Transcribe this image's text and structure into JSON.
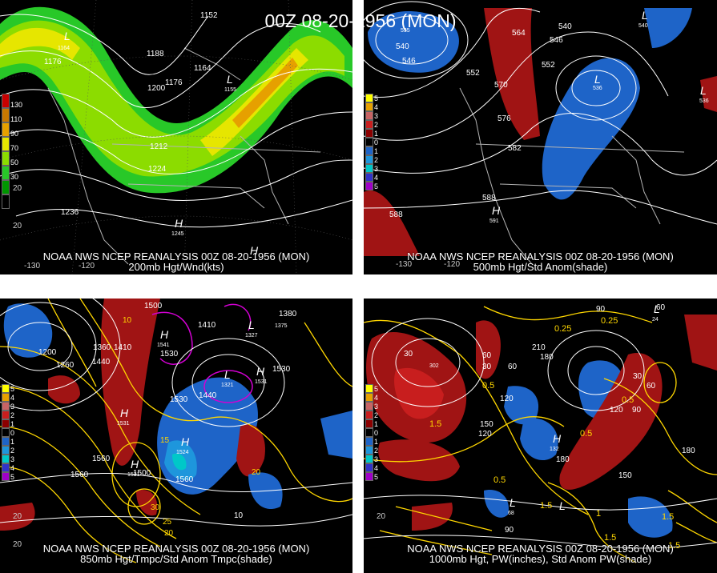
{
  "title": "00Z 08-20-1956 (MON)",
  "panels": [
    {
      "id": "p200",
      "caption_line1": "NOAA NWS NCEP REANALYSIS 00Z 08-20-1956 (MON)",
      "caption_line2": "200mb Hgt/Wnd(kts)",
      "colorbar": [
        "130",
        "110",
        "90",
        "70",
        "50",
        "30"
      ],
      "colorbar_colors": [
        "#c80000",
        "#c87800",
        "#e6a000",
        "#e6e600",
        "#8cdc00",
        "#28c828",
        "#009600",
        "#000000"
      ],
      "contour_labels": [
        "1152",
        "1176",
        "1188",
        "1164",
        "1176",
        "1200",
        "1212",
        "1224",
        "1236"
      ],
      "centers": [
        {
          "letter": "L",
          "value": "1164"
        },
        {
          "letter": "L",
          "value": "1155"
        },
        {
          "letter": "H",
          "value": "1245"
        },
        {
          "letter": "H",
          "value": ""
        }
      ],
      "lon_labels": [
        "-130",
        "-120",
        "20",
        "20"
      ]
    },
    {
      "id": "p500",
      "caption_line1": "NOAA NWS NCEP REANALYSIS 00Z 08-20-1956 (MON)",
      "caption_line2": "500mb Hgt/Std Anom(shade)",
      "colorbar": [
        "5",
        "4",
        "3",
        "2",
        "1",
        "0",
        "1",
        "2",
        "3",
        "4",
        "5"
      ],
      "colorbar_colors": [
        "#ffff00",
        "#e6a000",
        "#c86464",
        "#c81e1e",
        "#8c0000",
        "#000000",
        "#1e64c8",
        "#1e96dc",
        "#00c8c8",
        "#3232c8",
        "#a000c8"
      ],
      "contour_labels": [
        "564",
        "546",
        "540",
        "540",
        "546",
        "552",
        "570",
        "552",
        "576",
        "582",
        "588",
        "588"
      ],
      "centers": [
        {
          "letter": "L",
          "value": "535"
        },
        {
          "letter": "L",
          "value": "536"
        },
        {
          "letter": "L",
          "value": "540"
        },
        {
          "letter": "L",
          "value": "536"
        },
        {
          "letter": "H",
          "value": "591"
        }
      ],
      "lon_labels": [
        "-130",
        "-120"
      ]
    },
    {
      "id": "p850",
      "caption_line1": "NOAA NWS NCEP REANALYSIS 00Z 08-20-1956 (MON)",
      "caption_line2": "850mb Hgt/Tmpc/Std Anom Tmpc(shade)",
      "colorbar": [
        "5",
        "4",
        "3",
        "2",
        "1",
        "0",
        "1",
        "2",
        "3",
        "4",
        "5"
      ],
      "colorbar_colors": [
        "#ffff00",
        "#e6a000",
        "#c86464",
        "#c81e1e",
        "#8c0000",
        "#000000",
        "#1e64c8",
        "#1e96dc",
        "#00c8c8",
        "#3232c8",
        "#a000c8"
      ],
      "contour_labels": [
        "1500",
        "1410",
        "1380",
        "1200",
        "1260",
        "1360",
        "1410",
        "1440",
        "1530",
        "1440",
        "1530",
        "1530",
        "1560",
        "1560",
        "1560",
        "1500",
        "10",
        "15",
        "20",
        "25",
        "30",
        "20"
      ],
      "centers": [
        {
          "letter": "H",
          "value": "1531"
        },
        {
          "letter": "H",
          "value": "1541"
        },
        {
          "letter": "L",
          "value": "1321"
        },
        {
          "letter": "H",
          "value": "1524"
        },
        {
          "letter": "L",
          "value": "1327"
        },
        {
          "letter": "L",
          "value": "1375"
        },
        {
          "letter": "H",
          "value": "1531"
        },
        {
          "letter": "H",
          "value": "1531"
        }
      ],
      "lon_labels": [
        "20",
        "20"
      ]
    },
    {
      "id": "p1000",
      "caption_line1": "NOAA NWS NCEP REANALYSIS 00Z 08-20-1956 (MON)",
      "caption_line2": "1000mb Hgt, PW(inches), Std Anom PW(shade)",
      "colorbar": [
        "5",
        "4",
        "3",
        "2",
        "1",
        "0",
        "1",
        "2",
        "3",
        "4",
        "5"
      ],
      "colorbar_colors": [
        "#ffff00",
        "#e6a000",
        "#c86464",
        "#c81e1e",
        "#8c0000",
        "#000000",
        "#1e64c8",
        "#1e96dc",
        "#00c8c8",
        "#3232c8",
        "#a000c8"
      ],
      "contour_labels": [
        "90",
        "60",
        "0.25",
        "0.25",
        "30",
        "60",
        "30",
        "60",
        "210",
        "180",
        "120",
        "1.5",
        "150",
        "120",
        "0.5",
        "30",
        "60",
        "90",
        "120",
        "0.5",
        "0.5",
        "180",
        "1.5",
        "180",
        "150",
        "1.5",
        "0.5",
        "1.5",
        "90",
        "1",
        "20",
        "1.5"
      ],
      "centers": [
        {
          "letter": "L",
          "value": "24"
        },
        {
          "letter": "L",
          "value": "302"
        },
        {
          "letter": "H",
          "value": "132"
        },
        {
          "letter": "L",
          "value": "68"
        },
        {
          "letter": "L",
          "value": ""
        }
      ],
      "lon_labels": [
        "20"
      ]
    }
  ]
}
